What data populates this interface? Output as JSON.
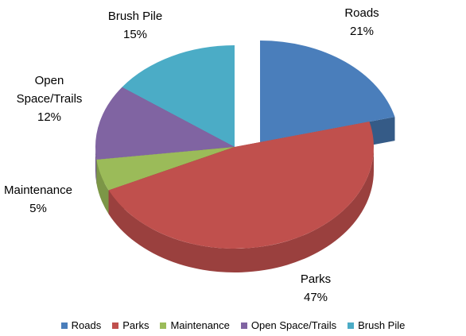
{
  "chart_data": {
    "type": "pie",
    "categories": [
      "Roads",
      "Parks",
      "Maintenance",
      "Open Space/Trails",
      "Brush Pile"
    ],
    "values": [
      21,
      47,
      5,
      12,
      15
    ],
    "value_labels": [
      "21%",
      "47%",
      "5%",
      "12%",
      "15%"
    ],
    "colors": [
      "#4a7ebb",
      "#c0504d",
      "#9bbb59",
      "#8064a2",
      "#4bacc6"
    ],
    "legend": "bottom"
  }
}
